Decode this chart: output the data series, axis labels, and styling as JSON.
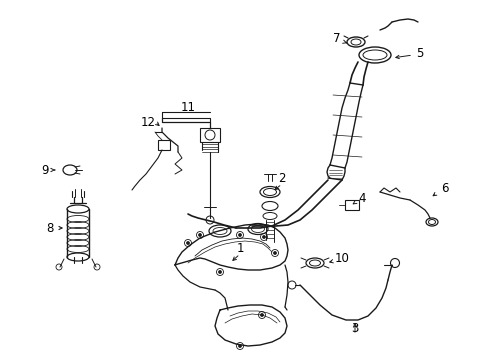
{
  "background_color": "#ffffff",
  "line_color": "#1a1a1a",
  "text_color": "#000000",
  "figsize": [
    4.89,
    3.6
  ],
  "dpi": 100,
  "border": [
    10,
    10,
    479,
    350
  ]
}
